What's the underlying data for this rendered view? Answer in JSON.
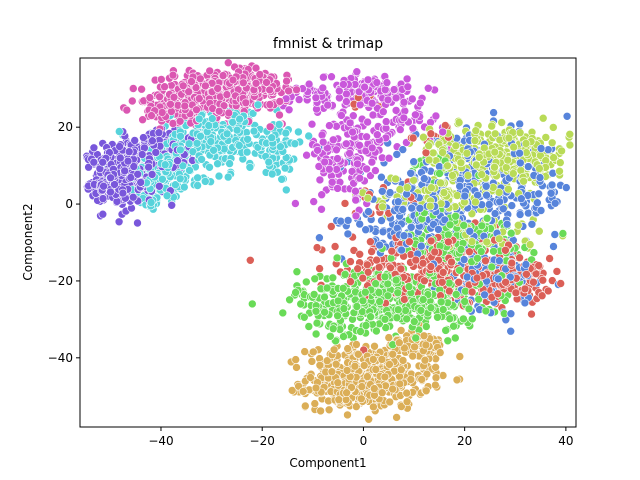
{
  "chart_data": {
    "type": "scatter",
    "title": "fmnist & trimap",
    "xlabel": "Component1",
    "ylabel": "Component2",
    "xlim": [
      -56,
      42
    ],
    "ylim": [
      -58,
      38
    ],
    "x_ticks": [
      -40,
      -20,
      0,
      20,
      40
    ],
    "x_tick_labels": [
      "−40",
      "−20",
      "0",
      "20",
      "40"
    ],
    "y_ticks": [
      -40,
      -20,
      0,
      20
    ],
    "y_tick_labels": [
      "−40",
      "−20",
      "0",
      "20"
    ],
    "grid": false,
    "legend": "none",
    "marker_edge_color": "#ffffff",
    "clusters": [
      {
        "color": "#db5f57",
        "n": 450,
        "regions": [
          {
            "cx": 14,
            "cy": -17,
            "sx": 9,
            "sy": 5,
            "w": 0.65
          },
          {
            "cx": 30,
            "cy": -20,
            "sx": 3.5,
            "sy": 3,
            "w": 0.25
          },
          {
            "cx": -1,
            "cy": 27,
            "sx": 1.5,
            "sy": 1.5,
            "w": 0.02
          },
          {
            "cx": 14,
            "cy": 18,
            "sx": 2,
            "sy": 2,
            "w": 0.03
          },
          {
            "cx": 3,
            "cy": -3,
            "sx": 4,
            "sy": 4,
            "w": 0.05
          }
        ]
      },
      {
        "color": "#dbae57",
        "n": 600,
        "regions": [
          {
            "cx": 1,
            "cy": -45,
            "sx": 6,
            "sy": 4,
            "w": 0.75
          },
          {
            "cx": -5,
            "cy": -48,
            "sx": 2.5,
            "sy": 2.5,
            "w": 0.15
          },
          {
            "cx": 11,
            "cy": -37,
            "sx": 3,
            "sy": 2,
            "w": 0.1
          }
        ]
      },
      {
        "color": "#b9db57",
        "n": 500,
        "regions": [
          {
            "cx": 29,
            "cy": 12,
            "sx": 6,
            "sy": 4,
            "w": 0.55
          },
          {
            "cx": 18,
            "cy": 14,
            "sx": 4,
            "sy": 3,
            "w": 0.15
          },
          {
            "cx": 13,
            "cy": 2,
            "sx": 6,
            "sy": 3,
            "w": 0.2
          },
          {
            "cx": 25,
            "cy": -8,
            "sx": 5,
            "sy": 3,
            "w": 0.1
          }
        ]
      },
      {
        "color": "#69db57",
        "n": 700,
        "regions": [
          {
            "cx": 5,
            "cy": -25,
            "sx": 9,
            "sy": 4,
            "w": 0.7
          },
          {
            "cx": 20,
            "cy": -10,
            "sx": 7,
            "sy": 4,
            "w": 0.25
          },
          {
            "cx": -5,
            "cy": -34,
            "sx": 1,
            "sy": 1,
            "w": 0.01
          },
          {
            "cx": 15,
            "cy": 10,
            "sx": 3,
            "sy": 3,
            "w": 0.04
          }
        ]
      },
      {
        "color": "#57d3db",
        "n": 550,
        "regions": [
          {
            "cx": -29,
            "cy": 17,
            "sx": 6,
            "sy": 4,
            "w": 0.5
          },
          {
            "cx": -40,
            "cy": 8,
            "sx": 4,
            "sy": 3,
            "w": 0.35
          },
          {
            "cx": -42,
            "cy": 1,
            "sx": 1.5,
            "sy": 1.5,
            "w": 0.05
          },
          {
            "cx": -17,
            "cy": 13,
            "sx": 2,
            "sy": 3,
            "w": 0.1
          }
        ]
      },
      {
        "color": "#5784db",
        "n": 550,
        "regions": [
          {
            "cx": 22,
            "cy": 3,
            "sx": 10,
            "sy": 7,
            "w": 0.6
          },
          {
            "cx": 8,
            "cy": -5,
            "sx": 5,
            "sy": 4,
            "w": 0.2
          },
          {
            "cx": 25,
            "cy": -19,
            "sx": 4,
            "sy": 4,
            "w": 0.2
          }
        ]
      },
      {
        "color": "#7957db",
        "n": 550,
        "regions": [
          {
            "cx": -47,
            "cy": 8,
            "sx": 3.5,
            "sy": 4,
            "w": 0.65
          },
          {
            "cx": -40,
            "cy": 13,
            "sx": 3,
            "sy": 3,
            "w": 0.25
          },
          {
            "cx": -51,
            "cy": 4,
            "sx": 1.5,
            "sy": 1.5,
            "w": 0.1
          }
        ]
      },
      {
        "color": "#c957db",
        "n": 400,
        "regions": [
          {
            "cx": 1,
            "cy": 29,
            "sx": 4,
            "sy": 2,
            "w": 0.35
          },
          {
            "cx": -3,
            "cy": 12,
            "sx": 4,
            "sy": 6,
            "w": 0.4
          },
          {
            "cx": 8,
            "cy": 22,
            "sx": 4,
            "sy": 3,
            "w": 0.15
          },
          {
            "cx": -10,
            "cy": 28,
            "sx": 3,
            "sy": 2,
            "w": 0.1
          }
        ]
      },
      {
        "color": "#db57b2",
        "n": 550,
        "regions": [
          {
            "cx": -28,
            "cy": 29,
            "sx": 6,
            "sy": 3,
            "w": 0.7
          },
          {
            "cx": -38,
            "cy": 25,
            "sx": 3,
            "sy": 2.5,
            "w": 0.2
          },
          {
            "cx": -20,
            "cy": 31,
            "sx": 3,
            "sy": 2,
            "w": 0.1
          }
        ]
      }
    ]
  }
}
